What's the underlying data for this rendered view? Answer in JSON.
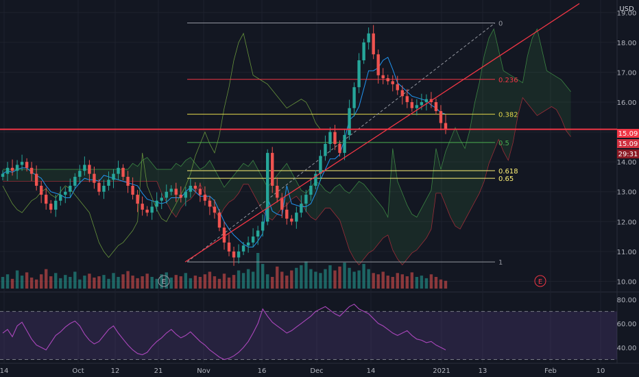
{
  "chart_data": [
    {
      "type": "candlestick",
      "currency": "USD",
      "ylim": [
        9.85,
        19.35
      ],
      "y_ticks": [
        "19.00",
        "18.00",
        "17.00",
        "16.00",
        "15.00",
        "14.00",
        "13.00",
        "12.00",
        "11.00",
        "10.00"
      ],
      "x_ticks": [
        "14",
        "Oct",
        "12",
        "21",
        "Nov",
        "16",
        "Dec",
        "14",
        "2021",
        "13",
        "Feb",
        "10"
      ],
      "last_price": "15.09",
      "last_price_badge": "15.09",
      "countdown": "29:31",
      "horizontal_level": 15.09,
      "earnings_markers": [
        "E",
        "E"
      ],
      "fibonacci": {
        "start": 10.65,
        "end": 18.65,
        "levels": [
          {
            "label": "0",
            "ratio": 0,
            "color": "#9598a1"
          },
          {
            "label": "0.236",
            "ratio": 0.236,
            "color": "#f23645"
          },
          {
            "label": "0.382",
            "ratio": 0.382,
            "color": "#e5d84b"
          },
          {
            "label": "0.5",
            "ratio": 0.5,
            "color": "#4caf50"
          },
          {
            "label": "0.618",
            "ratio": 0.618,
            "color": "#fff176"
          },
          {
            "label": "0.65",
            "ratio": 0.65,
            "color": "#fff176"
          },
          {
            "label": "1",
            "ratio": 1,
            "color": "#9598a1"
          }
        ]
      },
      "candles_close": [
        13.6,
        13.8,
        13.7,
        13.9,
        14.0,
        13.8,
        13.6,
        13.2,
        12.9,
        12.6,
        12.4,
        12.7,
        12.9,
        13.0,
        13.2,
        13.5,
        13.7,
        13.9,
        13.6,
        13.3,
        13.0,
        13.2,
        13.4,
        13.6,
        13.8,
        13.5,
        13.2,
        12.9,
        12.6,
        12.4,
        12.3,
        12.5,
        12.7,
        12.8,
        13.0,
        13.1,
        12.9,
        12.8,
        13.0,
        13.2,
        13.1,
        12.9,
        12.7,
        12.5,
        12.3,
        11.8,
        11.3,
        11.0,
        10.8,
        11.0,
        11.2,
        11.3,
        11.5,
        11.7,
        12.0,
        14.3,
        13.2,
        12.8,
        12.4,
        12.1,
        12.0,
        12.3,
        12.6,
        12.9,
        13.2,
        13.6,
        14.2,
        14.6,
        15.0,
        14.6,
        14.3,
        14.9,
        15.8,
        16.5,
        17.4,
        18.0,
        18.3,
        17.6,
        16.9,
        16.8,
        16.7,
        16.6,
        16.4,
        16.2,
        16.0,
        15.8,
        15.9,
        16.0,
        16.1,
        16.0,
        15.7,
        15.3,
        15.09
      ],
      "volume": [
        18,
        22,
        15,
        28,
        20,
        25,
        17,
        14,
        22,
        30,
        19,
        24,
        16,
        21,
        18,
        26,
        14,
        20,
        23,
        17,
        19,
        21,
        15,
        24,
        18,
        22,
        27,
        20,
        16,
        19,
        23,
        18,
        15,
        22,
        25,
        17,
        21,
        19,
        24,
        16,
        20,
        18,
        22,
        26,
        19,
        15,
        23,
        17,
        21,
        28,
        24,
        30,
        26,
        55,
        38,
        22,
        18,
        34,
        26,
        20,
        28,
        32,
        36,
        42,
        30,
        26,
        24,
        30,
        36,
        28,
        34,
        40,
        32,
        26,
        28,
        38,
        30,
        24,
        22,
        26,
        20,
        18,
        24,
        22,
        19,
        25,
        18,
        20,
        16,
        22,
        18,
        14,
        12
      ],
      "rsi": {
        "ticks": [
          "80.00",
          "60.00",
          "40.00"
        ],
        "ylim": [
          28,
          85
        ],
        "upper_band": 70,
        "lower_band": 30,
        "values": [
          52,
          55,
          49,
          58,
          61,
          54,
          47,
          42,
          40,
          38,
          44,
          50,
          53,
          57,
          60,
          62,
          58,
          51,
          46,
          43,
          45,
          50,
          55,
          58,
          52,
          47,
          42,
          38,
          35,
          34,
          36,
          41,
          45,
          48,
          52,
          55,
          51,
          48,
          50,
          53,
          49,
          45,
          42,
          38,
          35,
          32,
          30,
          31,
          33,
          36,
          40,
          45,
          52,
          60,
          72,
          66,
          61,
          58,
          55,
          52,
          54,
          57,
          60,
          63,
          66,
          70,
          72,
          74,
          71,
          68,
          66,
          70,
          74,
          76,
          72,
          70,
          68,
          64,
          60,
          58,
          55,
          52,
          50,
          52,
          54,
          50,
          47,
          46,
          44,
          45,
          42,
          40,
          38
        ]
      }
    }
  ]
}
